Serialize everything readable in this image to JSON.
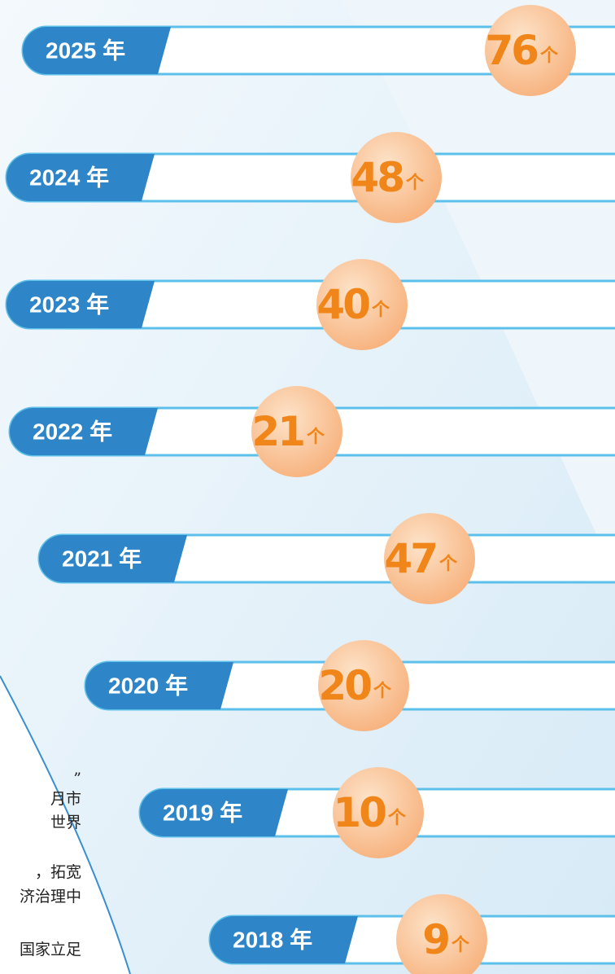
{
  "items": [
    {
      "year": "2025 年",
      "count": "76",
      "unit": "个"
    },
    {
      "year": "2024 年",
      "count": "48",
      "unit": "个"
    },
    {
      "year": "2023 年",
      "count": "40",
      "unit": "个"
    },
    {
      "year": "2022 年",
      "count": "21",
      "unit": "个"
    },
    {
      "year": "2021 年",
      "count": "47",
      "unit": "个"
    },
    {
      "year": "2020 年",
      "count": "20",
      "unit": "个"
    },
    {
      "year": "2019 年",
      "count": "10",
      "unit": "个"
    },
    {
      "year": "2018 年",
      "count": "9",
      "unit": "个"
    }
  ],
  "fragments": [
    "”",
    "月市",
    "世界",
    "，拓宽",
    "济治理中",
    "国家立足"
  ]
}
